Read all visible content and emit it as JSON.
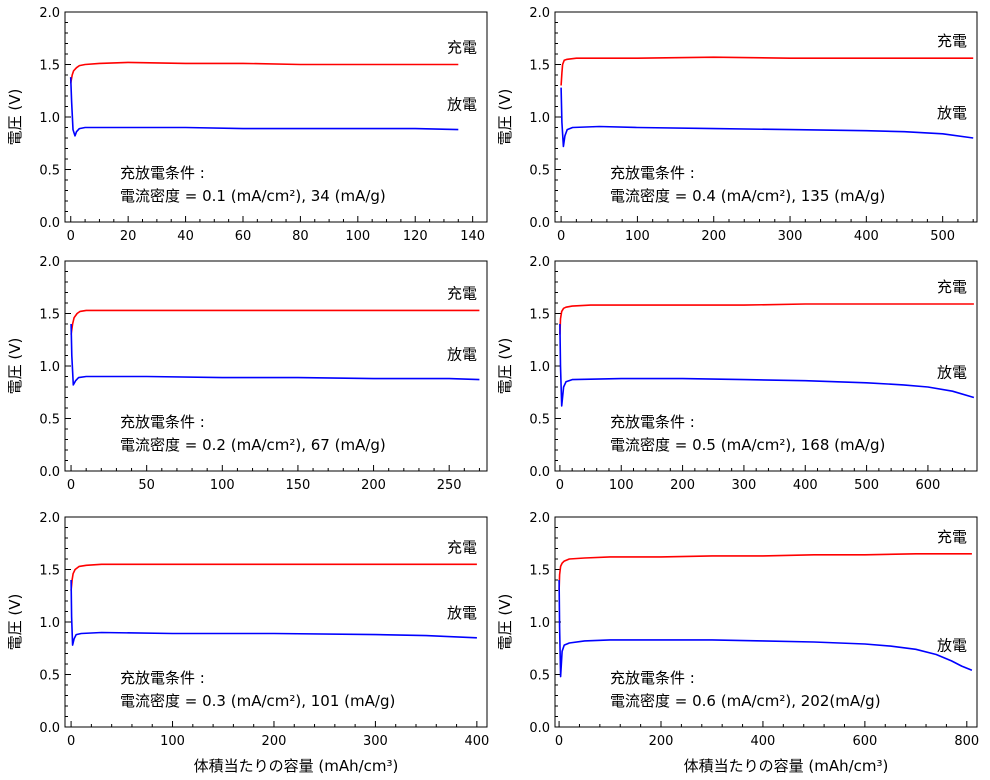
{
  "chart_data": [
    {
      "type": "line",
      "ylabel": "電圧 (V)",
      "xlabel": "",
      "xlim": [
        -2,
        145
      ],
      "ylim": [
        0,
        2.0
      ],
      "xticks": [
        0,
        20,
        40,
        60,
        80,
        100,
        120,
        140
      ],
      "yticks": [
        0.0,
        0.5,
        1.0,
        1.5,
        2.0
      ],
      "condition_title": "充放電条件 :",
      "condition_text": "電流密度 = 0.1 (mA/cm²), 34 (mA/g)",
      "series": [
        {
          "name": "充電",
          "color": "#ff0000",
          "x": [
            0,
            0.5,
            1,
            2,
            3,
            5,
            10,
            20,
            40,
            60,
            80,
            100,
            120,
            135
          ],
          "y": [
            1.32,
            1.4,
            1.44,
            1.47,
            1.49,
            1.5,
            1.51,
            1.52,
            1.51,
            1.51,
            1.5,
            1.5,
            1.5,
            1.5
          ]
        },
        {
          "name": "放電",
          "color": "#0000ff",
          "x": [
            0,
            0.3,
            0.8,
            1.5,
            2,
            3,
            5,
            20,
            40,
            60,
            80,
            100,
            120,
            135
          ],
          "y": [
            1.38,
            1.15,
            0.88,
            0.82,
            0.86,
            0.89,
            0.9,
            0.9,
            0.9,
            0.89,
            0.89,
            0.89,
            0.89,
            0.88
          ]
        }
      ]
    },
    {
      "type": "line",
      "ylabel": "電圧 (V)",
      "xlabel": "",
      "xlim": [
        -8,
        545
      ],
      "ylim": [
        0,
        2.0
      ],
      "xticks": [
        0,
        100,
        200,
        300,
        400,
        500
      ],
      "yticks": [
        0.0,
        0.5,
        1.0,
        1.5,
        2.0
      ],
      "condition_title": "充放電条件 :",
      "condition_text": "電流密度 = 0.4 (mA/cm²), 135 (mA/g)",
      "series": [
        {
          "name": "充電",
          "color": "#ff0000",
          "x": [
            0,
            1,
            2,
            4,
            8,
            20,
            100,
            200,
            300,
            400,
            500,
            540
          ],
          "y": [
            1.3,
            1.42,
            1.5,
            1.54,
            1.55,
            1.56,
            1.56,
            1.57,
            1.56,
            1.56,
            1.56,
            1.56
          ]
        },
        {
          "name": "放電",
          "color": "#0000ff",
          "x": [
            0,
            1,
            3,
            5,
            8,
            15,
            50,
            100,
            200,
            300,
            400,
            450,
            500,
            540
          ],
          "y": [
            1.28,
            0.95,
            0.72,
            0.82,
            0.88,
            0.9,
            0.91,
            0.9,
            0.89,
            0.88,
            0.87,
            0.86,
            0.84,
            0.8
          ]
        }
      ]
    },
    {
      "type": "line",
      "ylabel": "電圧 (V)",
      "xlabel": "",
      "xlim": [
        -4,
        275
      ],
      "ylim": [
        0,
        2.0
      ],
      "xticks": [
        0,
        50,
        100,
        150,
        200,
        250
      ],
      "yticks": [
        0.0,
        0.5,
        1.0,
        1.5,
        2.0
      ],
      "condition_title": "充放電条件 :",
      "condition_text": "電流密度 = 0.2 (mA/cm²), 67 (mA/g)",
      "series": [
        {
          "name": "充電",
          "color": "#ff0000",
          "x": [
            0,
            1,
            2,
            4,
            6,
            10,
            20,
            50,
            100,
            150,
            200,
            250,
            270
          ],
          "y": [
            1.3,
            1.4,
            1.46,
            1.5,
            1.52,
            1.53,
            1.53,
            1.53,
            1.53,
            1.53,
            1.53,
            1.53,
            1.53
          ]
        },
        {
          "name": "放電",
          "color": "#0000ff",
          "x": [
            0,
            0.5,
            1.5,
            3,
            5,
            10,
            50,
            100,
            150,
            200,
            250,
            270
          ],
          "y": [
            1.4,
            1.1,
            0.82,
            0.86,
            0.89,
            0.9,
            0.9,
            0.89,
            0.89,
            0.88,
            0.88,
            0.87
          ]
        }
      ]
    },
    {
      "type": "line",
      "ylabel": "電圧 (V)",
      "xlabel": "",
      "xlim": [
        -8,
        680
      ],
      "ylim": [
        0,
        2.0
      ],
      "xticks": [
        0,
        100,
        200,
        300,
        400,
        500,
        600
      ],
      "yticks": [
        0.0,
        0.5,
        1.0,
        1.5,
        2.0
      ],
      "condition_title": "充放電条件 :",
      "condition_text": "電流密度 = 0.5 (mA/cm²), 168 (mA/g)",
      "series": [
        {
          "name": "充電",
          "color": "#ff0000",
          "x": [
            0,
            1,
            3,
            6,
            10,
            20,
            50,
            100,
            200,
            300,
            400,
            500,
            600,
            675
          ],
          "y": [
            1.3,
            1.45,
            1.52,
            1.55,
            1.56,
            1.57,
            1.58,
            1.58,
            1.58,
            1.58,
            1.59,
            1.59,
            1.59,
            1.59
          ]
        },
        {
          "name": "放電",
          "color": "#0000ff",
          "x": [
            0,
            1,
            3,
            6,
            10,
            20,
            100,
            200,
            300,
            400,
            500,
            560,
            600,
            640,
            675
          ],
          "y": [
            1.4,
            1.0,
            0.62,
            0.8,
            0.85,
            0.87,
            0.88,
            0.88,
            0.87,
            0.86,
            0.84,
            0.82,
            0.8,
            0.76,
            0.7
          ]
        }
      ]
    },
    {
      "type": "line",
      "ylabel": "電圧 (V)",
      "xlabel": "体積当たりの容量 (mAh/cm³)",
      "xlim": [
        -6,
        410
      ],
      "ylim": [
        0,
        2.0
      ],
      "xticks": [
        0,
        100,
        200,
        300,
        400
      ],
      "yticks": [
        0.0,
        0.5,
        1.0,
        1.5,
        2.0
      ],
      "condition_title": "充放電条件 :",
      "condition_text": "電流密度 = 0.3 (mA/cm²), 101 (mA/g)",
      "series": [
        {
          "name": "充電",
          "color": "#ff0000",
          "x": [
            0,
            1,
            2,
            4,
            8,
            15,
            30,
            100,
            200,
            300,
            400
          ],
          "y": [
            1.3,
            1.4,
            1.46,
            1.5,
            1.53,
            1.54,
            1.55,
            1.55,
            1.55,
            1.55,
            1.55
          ]
        },
        {
          "name": "放電",
          "color": "#0000ff",
          "x": [
            0,
            0.5,
            1.5,
            3,
            5,
            10,
            30,
            100,
            200,
            300,
            350,
            400
          ],
          "y": [
            1.4,
            1.05,
            0.78,
            0.84,
            0.88,
            0.89,
            0.9,
            0.89,
            0.89,
            0.88,
            0.87,
            0.85
          ]
        }
      ]
    },
    {
      "type": "line",
      "ylabel": "電圧 (V)",
      "xlabel": "体積当たりの容量 (mAh/cm³)",
      "xlim": [
        -8,
        820
      ],
      "ylim": [
        0,
        2.0
      ],
      "xticks": [
        0,
        200,
        400,
        600,
        800
      ],
      "yticks": [
        0.0,
        0.5,
        1.0,
        1.5,
        2.0
      ],
      "condition_title": "充放電条件 :",
      "condition_text": "電流密度 = 0.6 (mA/cm²), 202(mA/g)",
      "series": [
        {
          "name": "充電",
          "color": "#ff0000",
          "x": [
            0,
            1,
            3,
            6,
            10,
            20,
            50,
            100,
            200,
            300,
            400,
            500,
            600,
            700,
            810
          ],
          "y": [
            1.3,
            1.45,
            1.53,
            1.56,
            1.58,
            1.6,
            1.61,
            1.62,
            1.62,
            1.63,
            1.63,
            1.64,
            1.64,
            1.65,
            1.65
          ]
        },
        {
          "name": "放電",
          "color": "#0000ff",
          "x": [
            0,
            1,
            3,
            6,
            10,
            20,
            50,
            100,
            200,
            300,
            400,
            500,
            600,
            650,
            700,
            740,
            770,
            790,
            810
          ],
          "y": [
            1.4,
            0.95,
            0.48,
            0.72,
            0.78,
            0.8,
            0.82,
            0.83,
            0.83,
            0.83,
            0.82,
            0.81,
            0.79,
            0.77,
            0.74,
            0.69,
            0.63,
            0.58,
            0.54
          ]
        }
      ]
    }
  ]
}
